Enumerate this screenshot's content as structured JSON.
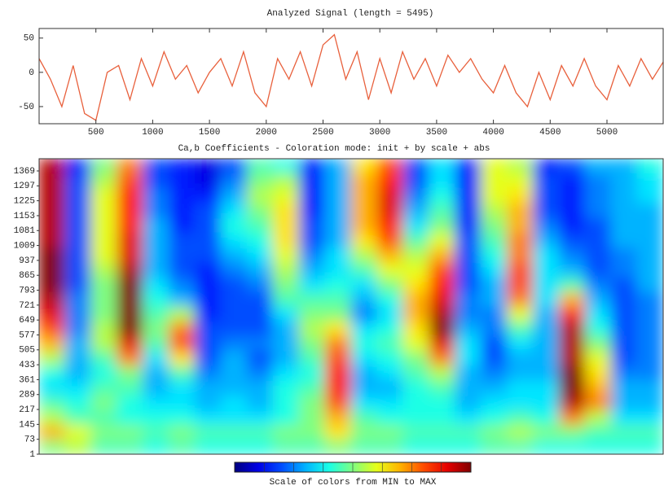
{
  "chart_data": [
    {
      "type": "line",
      "title": "Analyzed Signal  (length = 5495)",
      "color": "#e8603c",
      "x": [
        0,
        100,
        200,
        300,
        400,
        500,
        600,
        700,
        800,
        900,
        1000,
        1100,
        1200,
        1300,
        1400,
        1500,
        1600,
        1700,
        1800,
        1900,
        2000,
        2100,
        2200,
        2300,
        2400,
        2500,
        2600,
        2700,
        2800,
        2900,
        3000,
        3100,
        3200,
        3300,
        3400,
        3500,
        3600,
        3700,
        3800,
        3900,
        4000,
        4100,
        4200,
        4300,
        4400,
        4500,
        4600,
        4700,
        4800,
        4900,
        5000,
        5100,
        5200,
        5300,
        5400,
        5495
      ],
      "values": [
        20,
        -10,
        -50,
        10,
        -60,
        -70,
        0,
        10,
        -40,
        20,
        -20,
        30,
        -10,
        10,
        -30,
        0,
        20,
        -20,
        30,
        -30,
        -50,
        20,
        -10,
        30,
        -20,
        40,
        55,
        -10,
        30,
        -40,
        20,
        -30,
        30,
        -10,
        20,
        -20,
        25,
        0,
        20,
        -10,
        -30,
        10,
        -30,
        -50,
        0,
        -40,
        10,
        -20,
        20,
        -20,
        -40,
        10,
        -20,
        20,
        -10,
        15
      ],
      "xlim": [
        0,
        5495
      ],
      "ylim": [
        -75,
        64
      ],
      "xticks": [
        500,
        1000,
        1500,
        2000,
        2500,
        3000,
        3500,
        4000,
        4500,
        5000
      ],
      "yticks": [
        -50,
        0,
        50
      ]
    },
    {
      "type": "heatmap",
      "title": "Ca,b Coefficients - Coloration mode: init + by scale + abs",
      "colormap": "jet",
      "colorbar_label": "Scale of colors from MIN to MAX",
      "x": [
        114,
        343,
        572,
        801,
        1030,
        1259,
        1488,
        1717,
        1946,
        2175,
        2404,
        2633,
        2862,
        3091,
        3320,
        3549,
        3778,
        4007,
        4236,
        4465,
        4694,
        4923,
        5152,
        5381
      ],
      "y": [
        37,
        108,
        180,
        251,
        322,
        394,
        465,
        537,
        608,
        679,
        751,
        822,
        893,
        965,
        1036,
        1108,
        1179,
        1250,
        1322,
        1393
      ],
      "z": [
        [
          0.5,
          0.55,
          0.45,
          0.45,
          0.4,
          0.45,
          0.4,
          0.4,
          0.4,
          0.45,
          0.45,
          0.5,
          0.45,
          0.45,
          0.4,
          0.4,
          0.4,
          0.45,
          0.45,
          0.4,
          0.4,
          0.4,
          0.4,
          0.4
        ],
        [
          0.7,
          0.6,
          0.5,
          0.5,
          0.45,
          0.5,
          0.45,
          0.45,
          0.45,
          0.5,
          0.5,
          0.65,
          0.5,
          0.5,
          0.45,
          0.45,
          0.45,
          0.5,
          0.55,
          0.5,
          0.5,
          0.45,
          0.45,
          0.45
        ],
        [
          0.55,
          0.45,
          0.45,
          0.4,
          0.4,
          0.4,
          0.35,
          0.35,
          0.35,
          0.4,
          0.5,
          0.7,
          0.45,
          0.4,
          0.4,
          0.4,
          0.35,
          0.4,
          0.45,
          0.4,
          0.75,
          0.55,
          0.35,
          0.35
        ],
        [
          0.45,
          0.4,
          0.5,
          0.4,
          0.35,
          0.35,
          0.3,
          0.35,
          0.3,
          0.4,
          0.5,
          0.8,
          0.35,
          0.35,
          0.4,
          0.4,
          0.3,
          0.35,
          0.35,
          0.35,
          0.95,
          0.75,
          0.3,
          0.3
        ],
        [
          0.35,
          0.35,
          0.45,
          0.45,
          0.3,
          0.35,
          0.3,
          0.3,
          0.3,
          0.4,
          0.45,
          0.85,
          0.3,
          0.3,
          0.4,
          0.45,
          0.3,
          0.3,
          0.35,
          0.35,
          1.0,
          0.7,
          0.3,
          0.3
        ],
        [
          0.4,
          0.3,
          0.4,
          0.5,
          0.3,
          0.45,
          0.25,
          0.3,
          0.25,
          0.35,
          0.4,
          0.85,
          0.3,
          0.35,
          0.45,
          0.55,
          0.3,
          0.25,
          0.3,
          0.3,
          1.0,
          0.65,
          0.25,
          0.25
        ],
        [
          0.55,
          0.3,
          0.45,
          0.75,
          0.35,
          0.65,
          0.2,
          0.3,
          0.2,
          0.3,
          0.45,
          0.8,
          0.35,
          0.4,
          0.5,
          0.75,
          0.35,
          0.2,
          0.3,
          0.3,
          0.95,
          0.6,
          0.2,
          0.25
        ],
        [
          0.7,
          0.3,
          0.55,
          0.9,
          0.45,
          0.8,
          0.2,
          0.25,
          0.25,
          0.3,
          0.5,
          0.75,
          0.4,
          0.45,
          0.6,
          0.9,
          0.35,
          0.2,
          0.35,
          0.3,
          0.95,
          0.5,
          0.2,
          0.25
        ],
        [
          0.8,
          0.25,
          0.55,
          1.0,
          0.5,
          0.75,
          0.2,
          0.2,
          0.2,
          0.3,
          0.55,
          0.65,
          0.35,
          0.4,
          0.65,
          1.0,
          0.3,
          0.25,
          0.45,
          0.3,
          0.95,
          0.4,
          0.2,
          0.25
        ],
        [
          0.9,
          0.25,
          0.5,
          1.0,
          0.45,
          0.55,
          0.15,
          0.2,
          0.2,
          0.35,
          0.5,
          0.5,
          0.25,
          0.35,
          0.7,
          0.95,
          0.25,
          0.25,
          0.6,
          0.3,
          0.85,
          0.35,
          0.2,
          0.25
        ],
        [
          0.95,
          0.25,
          0.5,
          1.0,
          0.4,
          0.3,
          0.15,
          0.2,
          0.2,
          0.45,
          0.45,
          0.45,
          0.3,
          0.4,
          0.7,
          0.9,
          0.25,
          0.3,
          0.75,
          0.35,
          0.7,
          0.3,
          0.2,
          0.25
        ],
        [
          1.0,
          0.2,
          0.5,
          1.0,
          0.35,
          0.25,
          0.15,
          0.2,
          0.25,
          0.5,
          0.35,
          0.4,
          0.35,
          0.5,
          0.65,
          0.85,
          0.2,
          0.3,
          0.8,
          0.35,
          0.45,
          0.25,
          0.2,
          0.3
        ],
        [
          1.0,
          0.2,
          0.55,
          0.95,
          0.3,
          0.2,
          0.15,
          0.25,
          0.3,
          0.55,
          0.3,
          0.35,
          0.45,
          0.6,
          0.6,
          0.8,
          0.2,
          0.35,
          0.8,
          0.35,
          0.3,
          0.2,
          0.25,
          0.3
        ],
        [
          1.0,
          0.2,
          0.6,
          0.9,
          0.3,
          0.2,
          0.2,
          0.3,
          0.35,
          0.6,
          0.25,
          0.35,
          0.55,
          0.7,
          0.55,
          0.7,
          0.2,
          0.4,
          0.75,
          0.35,
          0.25,
          0.2,
          0.25,
          0.3
        ],
        [
          0.95,
          0.2,
          0.6,
          0.9,
          0.3,
          0.2,
          0.2,
          0.35,
          0.4,
          0.65,
          0.2,
          0.3,
          0.65,
          0.8,
          0.45,
          0.6,
          0.2,
          0.45,
          0.75,
          0.3,
          0.2,
          0.2,
          0.3,
          0.3
        ],
        [
          0.95,
          0.2,
          0.6,
          0.85,
          0.3,
          0.15,
          0.2,
          0.4,
          0.45,
          0.65,
          0.2,
          0.3,
          0.7,
          0.85,
          0.35,
          0.5,
          0.15,
          0.5,
          0.7,
          0.25,
          0.15,
          0.2,
          0.3,
          0.3
        ],
        [
          0.95,
          0.2,
          0.6,
          0.85,
          0.25,
          0.15,
          0.2,
          0.35,
          0.5,
          0.65,
          0.15,
          0.3,
          0.7,
          0.9,
          0.3,
          0.45,
          0.15,
          0.55,
          0.7,
          0.2,
          0.15,
          0.25,
          0.3,
          0.3
        ],
        [
          0.95,
          0.2,
          0.6,
          0.85,
          0.25,
          0.15,
          0.15,
          0.3,
          0.55,
          0.6,
          0.15,
          0.3,
          0.7,
          0.9,
          0.25,
          0.4,
          0.15,
          0.6,
          0.65,
          0.2,
          0.15,
          0.25,
          0.3,
          0.35
        ],
        [
          0.95,
          0.2,
          0.55,
          0.8,
          0.2,
          0.15,
          0.1,
          0.25,
          0.5,
          0.55,
          0.15,
          0.3,
          0.7,
          0.85,
          0.2,
          0.35,
          0.15,
          0.6,
          0.6,
          0.2,
          0.15,
          0.25,
          0.3,
          0.35
        ],
        [
          0.95,
          0.15,
          0.5,
          0.75,
          0.2,
          0.15,
          0.1,
          0.2,
          0.45,
          0.4,
          0.15,
          0.3,
          0.65,
          0.8,
          0.2,
          0.35,
          0.15,
          0.6,
          0.55,
          0.15,
          0.2,
          0.3,
          0.3,
          0.4
        ]
      ],
      "xlim": [
        0,
        5495
      ],
      "ylim": [
        1,
        1428
      ],
      "yticks": [
        1,
        73,
        145,
        217,
        289,
        361,
        433,
        505,
        577,
        649,
        721,
        793,
        865,
        937,
        1009,
        1081,
        1153,
        1225,
        1297,
        1369
      ]
    }
  ]
}
